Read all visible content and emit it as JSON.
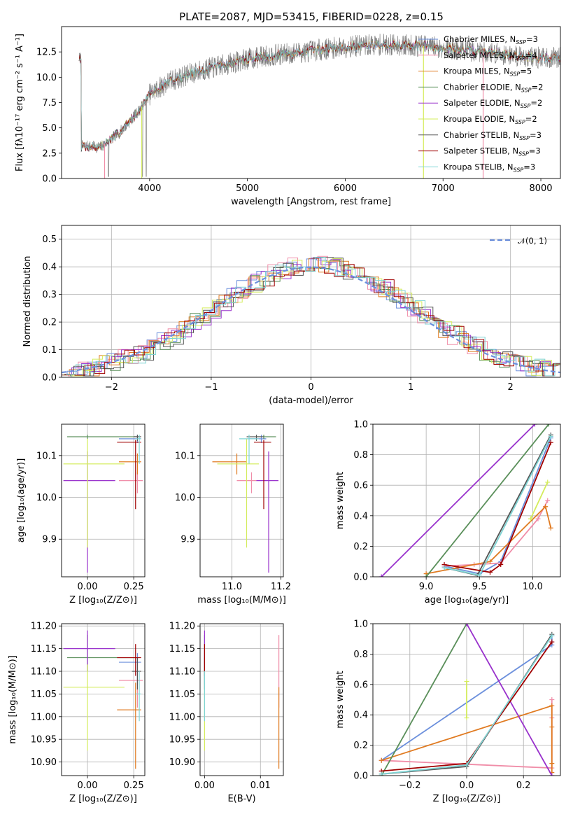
{
  "title": "PLATE=2087, MJD=53415, FIBERID=0228, z=0.15",
  "colors": {
    "Chabrier MILES": "#6b8fdc",
    "Salpeter MILES": "#f08da8",
    "Kroupa MILES": "#e07a20",
    "Chabrier ELODIE": "#5a8f5a",
    "Salpeter ELODIE": "#9932cc",
    "Kroupa ELODIE": "#d4ec5c",
    "Chabrier STELIB": "#555555",
    "Salpeter STELIB": "#a00000",
    "Kroupa STELIB": "#7fd4d4",
    "data": "#808080",
    "gauss": "#6b8fdc"
  },
  "chart_data": [
    {
      "id": "spectrum",
      "type": "line",
      "xlabel": "wavelength [Angstrom, rest frame]",
      "ylabel": "Flux [fλ10⁻¹⁷ erg cm⁻² s⁻¹ A⁻¹]",
      "xlim": [
        3100,
        8200
      ],
      "ylim": [
        0,
        15
      ],
      "xticks": [
        4000,
        5000,
        6000,
        7000,
        8000
      ],
      "yticks": [
        0.0,
        2.5,
        5.0,
        7.5,
        10.0,
        12.5
      ],
      "legend": [
        "Chabrier MILES, N_SSP=3",
        "Salpeter MILES, N_SSP=4",
        "Kroupa MILES, N_SSP=5",
        "Chabrier ELODIE, N_SSP=2",
        "Salpeter ELODIE, N_SSP=2",
        "Kroupa ELODIE, N_SSP=2",
        "Chabrier STELIB, N_SSP=3",
        "Salpeter STELIB, N_SSP=3",
        "Kroupa STELIB, N_SSP=3"
      ],
      "legend_placement": "right",
      "continuum": {
        "x": [
          3300,
          3500,
          3700,
          3900,
          4000,
          4200,
          4500,
          4800,
          5000,
          5200,
          5500,
          5800,
          6000,
          6300,
          6500,
          6800,
          7000,
          7300,
          7500,
          7800,
          8000
        ],
        "y": [
          3.2,
          3.1,
          4.6,
          6.8,
          8.3,
          9.6,
          10.6,
          11.3,
          11.8,
          12.1,
          12.4,
          12.8,
          13.0,
          13.2,
          13.2,
          13.1,
          12.9,
          12.6,
          12.4,
          12.1,
          11.9
        ]
      }
    },
    {
      "id": "residuals",
      "type": "line",
      "xlabel": "(data-model)/error",
      "ylabel": "Normed distribution",
      "xlim": [
        -2.5,
        2.5
      ],
      "ylim": [
        0,
        0.55
      ],
      "xticks": [
        -2,
        -1,
        0,
        1,
        2
      ],
      "yticks": [
        0.0,
        0.1,
        0.2,
        0.3,
        0.4,
        0.5
      ],
      "grid": true,
      "legend": [
        "𝒩(0, 1)"
      ],
      "legend_placement": "top-right"
    },
    {
      "id": "age-vs-Z",
      "type": "scatter",
      "xlabel": "Z [log₁₀(Z/Z⊙)]",
      "ylabel": "age  [log₁₀(age/yr)]",
      "xlim": [
        -0.14,
        0.31
      ],
      "ylim": [
        9.81,
        10.175
      ],
      "xticks": [
        0.0,
        0.25
      ],
      "yticks": [
        9.9,
        10.0,
        10.1
      ],
      "grid": true,
      "points": [
        {
          "series": "Chabrier MILES",
          "x": 0.27,
          "y": 10.14,
          "xerr": [
            0.1,
            0.02
          ],
          "yerr": [
            0.01,
            0.01
          ]
        },
        {
          "series": "Salpeter MILES",
          "x": 0.27,
          "y": 10.04,
          "xerr": [
            0.1,
            0.03
          ],
          "yerr": [
            0.03,
            0.02
          ]
        },
        {
          "series": "Kroupa MILES",
          "x": 0.27,
          "y": 10.085,
          "xerr": [
            0.1,
            0.02
          ],
          "yerr": [
            0.03,
            0.02
          ]
        },
        {
          "series": "Chabrier ELODIE",
          "x": 0.0,
          "y": 10.145,
          "xerr": [
            0.11,
            0.28
          ],
          "yerr": [
            0.005,
            0.005
          ]
        },
        {
          "series": "Salpeter ELODIE",
          "x": 0.0,
          "y": 10.04,
          "xerr": [
            0.13,
            0.15
          ],
          "yerr": [
            0.22,
            0.07
          ]
        },
        {
          "series": "Kroupa ELODIE",
          "x": 0.0,
          "y": 10.08,
          "xerr": [
            0.13,
            0.2
          ],
          "yerr": [
            0.2,
            0.06
          ]
        },
        {
          "series": "Chabrier STELIB",
          "x": 0.27,
          "y": 10.145,
          "xerr": [
            0.02,
            0.02
          ],
          "yerr": [
            0.01,
            0.005
          ]
        },
        {
          "series": "Salpeter STELIB",
          "x": 0.26,
          "y": 10.132,
          "xerr": [
            0.1,
            0.03
          ],
          "yerr": [
            0.16,
            0.005
          ]
        },
        {
          "series": "Kroupa STELIB",
          "x": 0.28,
          "y": 10.14,
          "xerr": [
            0.02,
            0.01
          ],
          "yerr": [
            0.06,
            0.01
          ]
        }
      ]
    },
    {
      "id": "age-vs-mass",
      "type": "scatter",
      "xlabel": "mass [log₁₀(M/M⊙)]",
      "xlim": [
        10.87,
        11.21
      ],
      "ylim": [
        9.81,
        10.175
      ],
      "xticks": [
        11.0,
        11.2
      ],
      "yticks": [
        9.9,
        10.0,
        10.1
      ],
      "grid": true,
      "points": [
        {
          "series": "Chabrier MILES",
          "x": 11.12,
          "y": 10.14,
          "xerr": [
            0.05,
            0.02
          ],
          "yerr": [
            0.01,
            0.01
          ]
        },
        {
          "series": "Salpeter MILES",
          "x": 11.08,
          "y": 10.04,
          "xerr": [
            0.06,
            0.02
          ],
          "yerr": [
            0.03,
            0.02
          ]
        },
        {
          "series": "Kroupa MILES",
          "x": 11.02,
          "y": 10.085,
          "xerr": [
            0.1,
            0.04
          ],
          "yerr": [
            0.03,
            0.02
          ]
        },
        {
          "series": "Chabrier ELODIE",
          "x": 11.13,
          "y": 10.145,
          "xerr": [
            0.03,
            0.05
          ],
          "yerr": [
            0.005,
            0.005
          ]
        },
        {
          "series": "Salpeter ELODIE",
          "x": 11.15,
          "y": 10.04,
          "xerr": [
            0.05,
            0.04
          ],
          "yerr": [
            0.22,
            0.07
          ]
        },
        {
          "series": "Kroupa ELODIE",
          "x": 11.06,
          "y": 10.08,
          "xerr": [
            0.12,
            0.05
          ],
          "yerr": [
            0.2,
            0.06
          ]
        },
        {
          "series": "Chabrier STELIB",
          "x": 11.1,
          "y": 10.145,
          "xerr": [
            0.04,
            0.03
          ],
          "yerr": [
            0.01,
            0.005
          ]
        },
        {
          "series": "Salpeter STELIB",
          "x": 11.13,
          "y": 10.132,
          "xerr": [
            0.04,
            0.03
          ],
          "yerr": [
            0.16,
            0.005
          ]
        },
        {
          "series": "Kroupa STELIB",
          "x": 11.07,
          "y": 10.14,
          "xerr": [
            0.04,
            0.04
          ],
          "yerr": [
            0.06,
            0.01
          ]
        }
      ]
    },
    {
      "id": "weight-vs-age",
      "type": "line",
      "xlabel": "age  [log₁₀(age/yr)]",
      "ylabel": "mass weight",
      "xlim": [
        8.5,
        10.26
      ],
      "ylim": [
        0,
        1
      ],
      "xticks": [
        9.0,
        9.5,
        10.0
      ],
      "yticks": [
        0.0,
        0.2,
        0.4,
        0.6,
        0.8,
        1.0
      ],
      "grid": true,
      "series": [
        {
          "name": "Chabrier MILES",
          "x": [
            9.17,
            9.5,
            9.7,
            10.17
          ],
          "y": [
            0.07,
            0.02,
            0.1,
            0.91
          ]
        },
        {
          "name": "Salpeter MILES",
          "x": [
            9.17,
            9.45,
            9.7,
            10.05,
            10.14
          ],
          "y": [
            0.07,
            0.08,
            0.09,
            0.38,
            0.5
          ]
        },
        {
          "name": "Kroupa MILES",
          "x": [
            9.0,
            9.3,
            9.6,
            10.12,
            10.17
          ],
          "y": [
            0.02,
            0.06,
            0.1,
            0.46,
            0.32
          ]
        },
        {
          "name": "Chabrier ELODIE",
          "x": [
            9.0,
            10.15
          ],
          "y": [
            0.0,
            1.0
          ]
        },
        {
          "name": "Salpeter ELODIE",
          "x": [
            8.58,
            10.02
          ],
          "y": [
            0.0,
            1.0
          ]
        },
        {
          "name": "Kroupa ELODIE",
          "x": [
            9.98,
            10.14
          ],
          "y": [
            0.38,
            0.62
          ]
        },
        {
          "name": "Chabrier STELIB",
          "x": [
            9.17,
            9.48,
            10.17
          ],
          "y": [
            0.06,
            0.01,
            0.93
          ]
        },
        {
          "name": "Salpeter STELIB",
          "x": [
            9.17,
            9.6,
            9.7,
            10.17
          ],
          "y": [
            0.08,
            0.03,
            0.08,
            0.88
          ]
        },
        {
          "name": "Kroupa STELIB",
          "x": [
            9.17,
            9.5,
            10.17
          ],
          "y": [
            0.06,
            0.01,
            0.92
          ]
        }
      ]
    },
    {
      "id": "mass-vs-Z",
      "type": "scatter",
      "xlabel": "Z [log₁₀(Z/Z⊙)]",
      "ylabel": "mass [log₁₀(M/M⊙)]",
      "xlim": [
        -0.14,
        0.31
      ],
      "ylim": [
        10.87,
        11.205
      ],
      "xticks": [
        0.0,
        0.25
      ],
      "yticks": [
        10.9,
        10.95,
        11.0,
        11.05,
        11.1,
        11.15,
        11.2
      ],
      "grid": true,
      "points": [
        {
          "series": "Chabrier MILES",
          "x": 0.27,
          "y": 11.12,
          "xerr": [
            0.1,
            0.02
          ],
          "yerr": [
            0.05,
            0.02
          ]
        },
        {
          "series": "Salpeter MILES",
          "x": 0.27,
          "y": 11.08,
          "xerr": [
            0.1,
            0.03
          ],
          "yerr": [
            0.06,
            0.02
          ]
        },
        {
          "series": "Kroupa MILES",
          "x": 0.26,
          "y": 11.015,
          "xerr": [
            0.1,
            0.03
          ],
          "yerr": [
            0.13,
            0.06
          ]
        },
        {
          "series": "Chabrier ELODIE",
          "x": 0.0,
          "y": 11.13,
          "xerr": [
            0.11,
            0.28
          ],
          "yerr": [
            0.03,
            0.05
          ]
        },
        {
          "series": "Salpeter ELODIE",
          "x": 0.0,
          "y": 11.15,
          "xerr": [
            0.13,
            0.15
          ],
          "yerr": [
            0.05,
            0.04
          ]
        },
        {
          "series": "Kroupa ELODIE",
          "x": 0.0,
          "y": 11.065,
          "xerr": [
            0.13,
            0.2
          ],
          "yerr": [
            0.14,
            0.05
          ]
        },
        {
          "series": "Chabrier STELIB",
          "x": 0.27,
          "y": 11.1,
          "xerr": [
            0.03,
            0.02
          ],
          "yerr": [
            0.04,
            0.03
          ]
        },
        {
          "series": "Salpeter STELIB",
          "x": 0.26,
          "y": 11.13,
          "xerr": [
            0.1,
            0.03
          ],
          "yerr": [
            0.04,
            0.03
          ]
        },
        {
          "series": "Kroupa STELIB",
          "x": 0.28,
          "y": 11.05,
          "xerr": [
            0.02,
            0.01
          ],
          "yerr": [
            0.06,
            0.05
          ]
        }
      ]
    },
    {
      "id": "mass-vs-EBV",
      "type": "scatter",
      "xlabel": "E(B-V)",
      "xlim": [
        -0.0008,
        0.0141
      ],
      "ylim": [
        10.87,
        11.205
      ],
      "xticks": [
        0.0,
        0.01
      ],
      "yticks": [
        10.9,
        10.95,
        11.0,
        11.05,
        11.1,
        11.15,
        11.2
      ],
      "grid": true,
      "points": [
        {
          "series": "Chabrier MILES",
          "x": 0.0,
          "y": 11.12,
          "yerr": [
            0.05,
            0.02
          ]
        },
        {
          "series": "Salpeter MILES",
          "x": 0.0133,
          "y": 11.08,
          "yerr": [
            0.06,
            0.1
          ]
        },
        {
          "series": "Kroupa MILES",
          "x": 0.0133,
          "y": 11.015,
          "yerr": [
            0.13,
            0.05
          ]
        },
        {
          "series": "Chabrier ELODIE",
          "x": 0.0,
          "y": 11.13,
          "yerr": [
            0.03,
            0.05
          ]
        },
        {
          "series": "Salpeter ELODIE",
          "x": 0.0,
          "y": 11.15,
          "yerr": [
            0.05,
            0.04
          ]
        },
        {
          "series": "Kroupa ELODIE",
          "x": 0.0,
          "y": 11.065,
          "yerr": [
            0.14,
            0.05
          ]
        },
        {
          "series": "Chabrier STELIB",
          "x": 0.0,
          "y": 11.1,
          "yerr": [
            0.04,
            0.03
          ]
        },
        {
          "series": "Salpeter STELIB",
          "x": 0.0,
          "y": 11.13,
          "yerr": [
            0.04,
            0.03
          ]
        },
        {
          "series": "Kroupa STELIB",
          "x": 0.0,
          "y": 11.05,
          "yerr": [
            0.06,
            0.05
          ]
        }
      ]
    },
    {
      "id": "weight-vs-Z",
      "type": "line",
      "xlabel": "Z [log₁₀(Z/Z⊙)]",
      "ylabel": "mass weight",
      "xlim": [
        -0.33,
        0.33
      ],
      "ylim": [
        0,
        1
      ],
      "xticks": [
        -0.2,
        0.0,
        0.2
      ],
      "yticks": [
        0.0,
        0.2,
        0.4,
        0.6,
        0.8,
        1.0
      ],
      "grid": true,
      "series": [
        {
          "name": "Chabrier MILES",
          "x": [
            -0.3,
            0.3,
            0.3
          ],
          "y": [
            0.1,
            0.86,
            0.92
          ]
        },
        {
          "name": "Salpeter MILES",
          "x": [
            -0.3,
            0.3,
            0.3,
            0.3
          ],
          "y": [
            0.1,
            0.05,
            0.38,
            0.5
          ]
        },
        {
          "name": "Kroupa MILES",
          "x": [
            -0.3,
            0.3,
            0.3,
            0.3,
            0.3
          ],
          "y": [
            0.1,
            0.46,
            0.32,
            0.08,
            0.02
          ]
        },
        {
          "name": "Chabrier ELODIE",
          "x": [
            -0.3,
            0.0
          ],
          "y": [
            0.0,
            1.0
          ]
        },
        {
          "name": "Salpeter ELODIE",
          "x": [
            0.0,
            0.3
          ],
          "y": [
            1.0,
            0.0
          ]
        },
        {
          "name": "Kroupa ELODIE",
          "x": [
            0.0,
            0.0
          ],
          "y": [
            0.38,
            0.62
          ]
        },
        {
          "name": "Chabrier STELIB",
          "x": [
            -0.3,
            0.0,
            0.3
          ],
          "y": [
            0.01,
            0.06,
            0.93
          ]
        },
        {
          "name": "Salpeter STELIB",
          "x": [
            -0.3,
            0.0,
            0.3
          ],
          "y": [
            0.03,
            0.08,
            0.88
          ]
        },
        {
          "name": "Kroupa STELIB",
          "x": [
            -0.3,
            0.0,
            0.3
          ],
          "y": [
            0.01,
            0.07,
            0.92
          ]
        }
      ]
    }
  ]
}
